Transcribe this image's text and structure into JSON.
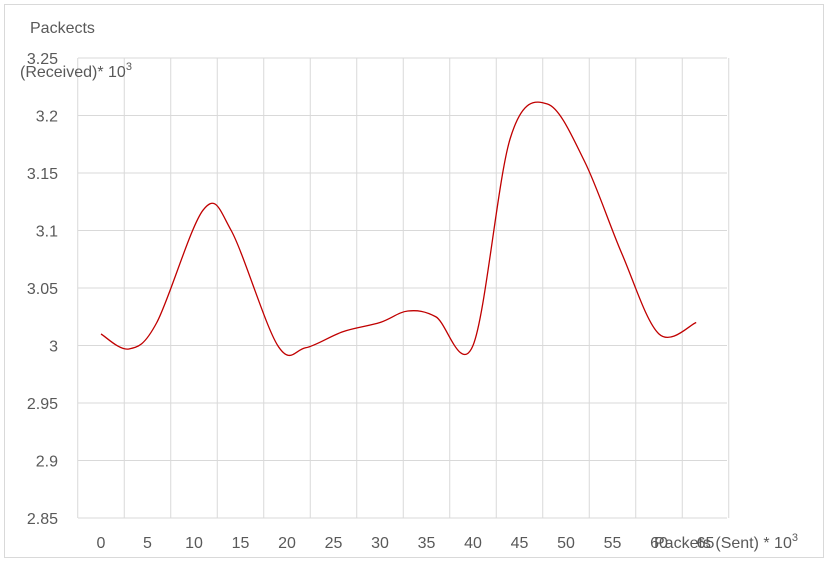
{
  "chart_data": {
    "type": "line",
    "title": "",
    "ylabel_line1": "Packects",
    "ylabel_line2": "(Received)* 10",
    "ylabel_sup": "3",
    "xlabel": "Packets (Sent) * 10",
    "xlabel_sup": "3",
    "ylim": [
      2.85,
      3.25
    ],
    "yticks": [
      2.85,
      2.9,
      2.95,
      3,
      3.05,
      3.1,
      3.15,
      3.2,
      3.25
    ],
    "ytick_labels": [
      "2.85",
      "2.9",
      "2.95",
      "3",
      "3.05",
      "3.1",
      "3.15",
      "3.2",
      "3.25"
    ],
    "xticks": [
      0,
      5,
      10,
      15,
      20,
      25,
      30,
      35,
      40,
      45,
      50,
      55,
      60,
      65
    ],
    "xtick_labels": [
      "0",
      "5",
      "10",
      "15",
      "20",
      "25",
      "30",
      "35",
      "40",
      "45",
      "50",
      "55",
      "60",
      "65"
    ],
    "grid": true,
    "series": [
      {
        "color": "#c00000",
        "x": [
          0,
          3,
          6,
          11,
          14,
          19,
          22,
          26,
          30,
          33,
          36,
          40,
          44,
          48,
          52,
          56,
          60,
          64
        ],
        "y": [
          3.01,
          2.997,
          3.02,
          3.118,
          3.1,
          3.0,
          2.998,
          3.012,
          3.02,
          3.03,
          3.025,
          3.0,
          3.18,
          3.21,
          3.16,
          3.08,
          3.01,
          3.02
        ]
      }
    ]
  }
}
